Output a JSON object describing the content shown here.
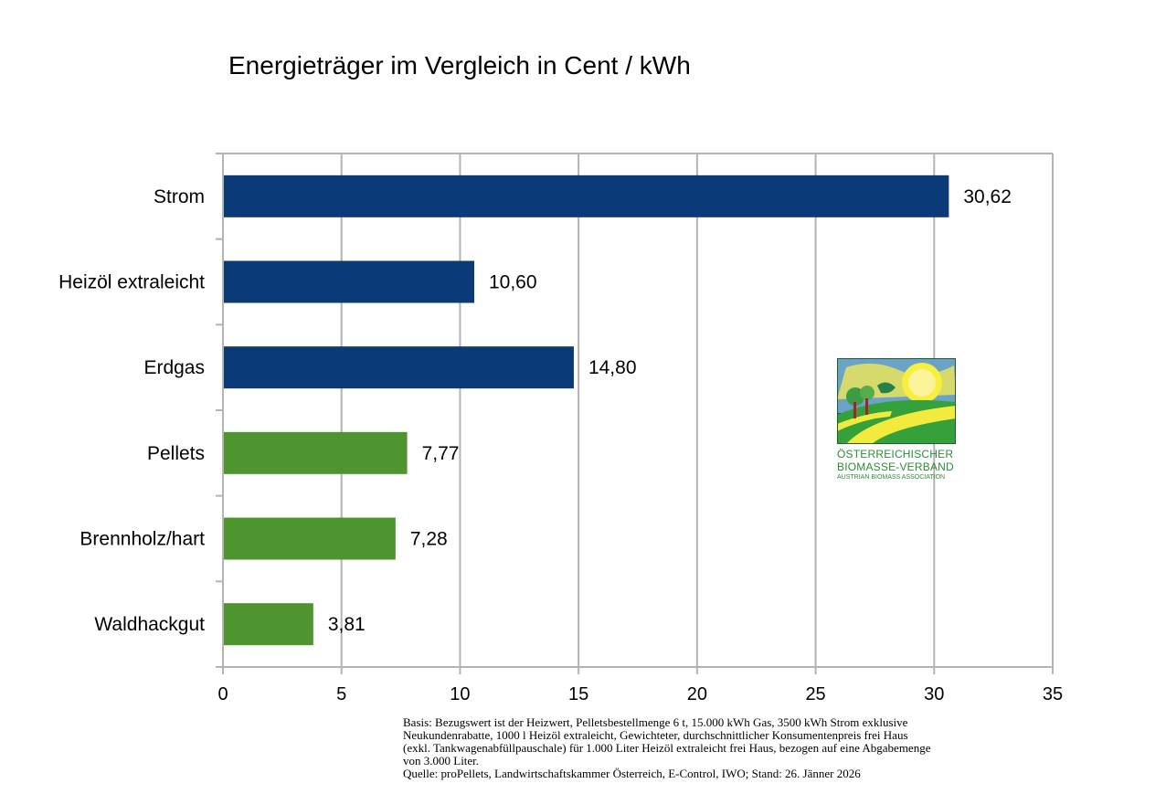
{
  "chart_data": {
    "type": "bar",
    "orientation": "horizontal",
    "title": "Energieträger im Vergleich in Cent / kWh",
    "categories": [
      "Strom",
      "Heizöl extraleicht",
      "Erdgas",
      "Pellets",
      "Brennholz/hart",
      "Waldhackgut"
    ],
    "values": [
      30.62,
      10.6,
      14.8,
      7.77,
      7.28,
      3.81
    ],
    "value_labels": [
      "30,62",
      "10,60",
      "14,80",
      "7,77",
      "7,28",
      "3,81"
    ],
    "bar_colors": [
      "#0a3a78",
      "#0a3a78",
      "#0a3a78",
      "#4f952f",
      "#4f952f",
      "#4f952f"
    ],
    "xlim": [
      0,
      35
    ],
    "x_ticks": [
      0,
      5,
      10,
      15,
      20,
      25,
      30,
      35
    ],
    "grid": true,
    "legend": "none"
  },
  "logo": {
    "line1": "ÖSTERREICHISCHER",
    "line2": "BIOMASSE-VERBAND",
    "line3": "AUSTRIAN BIOMASS ASSOCIATION"
  },
  "footnote": {
    "line1": "Basis: Bezugswert ist der Heizwert, Pelletsbestellmenge 6 t, 15.000 kWh Gas, 3500 kWh Strom exklusive",
    "line2": "Neukundenrabatte, 1000 l Heizöl extraleicht, Gewichteter, durchschnittlicher Konsumentenpreis frei Haus",
    "line3": "(exkl. Tankwagenabfüllpauschale) für 1.000 Liter Heizöl extraleicht frei Haus, bezogen auf eine Abgabemenge",
    "line4": "von 3.000 Liter.",
    "line5": "Quelle: proPellets, Landwirtschaftskammer Österreich, E-Control, IWO; Stand: 26. Jänner 2026"
  }
}
